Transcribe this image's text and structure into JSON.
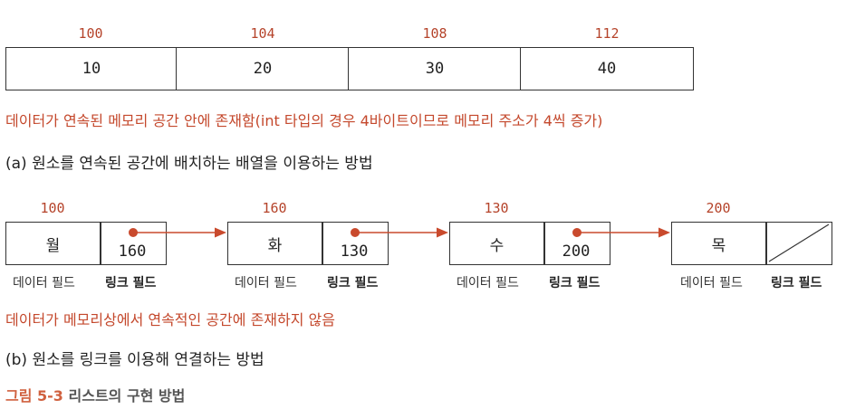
{
  "array": {
    "addresses": [
      "100",
      "104",
      "108",
      "112"
    ],
    "values": [
      "10",
      "20",
      "30",
      "40"
    ],
    "note": "데이터가 연속된 메모리 공간 안에 존재함(int 타입의 경우 4바이트이므로 메모리 주소가 4씩 증가)",
    "caption": "(a) 원소를 연속된 공간에 배치하는 배열을 이용하는 방법"
  },
  "linked": {
    "nodes": [
      {
        "address": "100",
        "data": "월",
        "link": "160"
      },
      {
        "address": "160",
        "data": "화",
        "link": "130"
      },
      {
        "address": "130",
        "data": "수",
        "link": "200"
      },
      {
        "address": "200",
        "data": "목",
        "link": ""
      }
    ],
    "data_field_label": "데이터 필드",
    "link_field_label": "링크 필드",
    "note": "데이터가 메모리상에서 연속적인 공간에 존재하지 않음",
    "caption": "(b) 원소를 링크를 이용해 연결하는 방법"
  },
  "figure": {
    "number": "그림 5-3",
    "title": "리스트의 구현 방법"
  },
  "colors": {
    "accent": "#c4482c",
    "arrow": "#c94a2d",
    "border": "#333333"
  }
}
